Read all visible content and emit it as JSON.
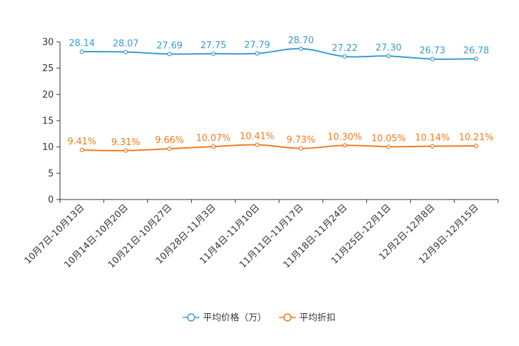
{
  "chart_data": {
    "type": "line",
    "title": "",
    "xlabel": "",
    "ylabel": "",
    "ylim": [
      0,
      30
    ],
    "yticks": [
      0,
      5,
      10,
      15,
      20,
      25,
      30
    ],
    "grid": false,
    "legend_position": "bottom-center",
    "categories": [
      "10月7日-10月13日",
      "10月14日-10月20日",
      "10月21日-10月27日",
      "10月28日-11月3日",
      "11月4日-11月10日",
      "11月11日-11月17日",
      "11月18日-11月24日",
      "11月25日-12月1日",
      "12月2日-12月8日",
      "12月9日-12月15日"
    ],
    "series": [
      {
        "name": "平均价格（万）",
        "color": "#3a9bd0",
        "values": [
          28.14,
          28.07,
          27.69,
          27.75,
          27.79,
          28.7,
          27.22,
          27.3,
          26.73,
          26.78
        ],
        "labels": [
          "28.14",
          "28.07",
          "27.69",
          "27.75",
          "27.79",
          "28.70",
          "27.22",
          "27.30",
          "26.73",
          "26.78"
        ]
      },
      {
        "name": "平均折扣",
        "color": "#f07a1e",
        "values": [
          9.41,
          9.31,
          9.66,
          10.07,
          10.41,
          9.73,
          10.3,
          10.05,
          10.14,
          10.21
        ],
        "labels": [
          "9.41%",
          "9.31%",
          "9.66%",
          "10.07%",
          "10.41%",
          "9.73%",
          "10.30%",
          "10.05%",
          "10.14%",
          "10.21%"
        ]
      }
    ]
  }
}
